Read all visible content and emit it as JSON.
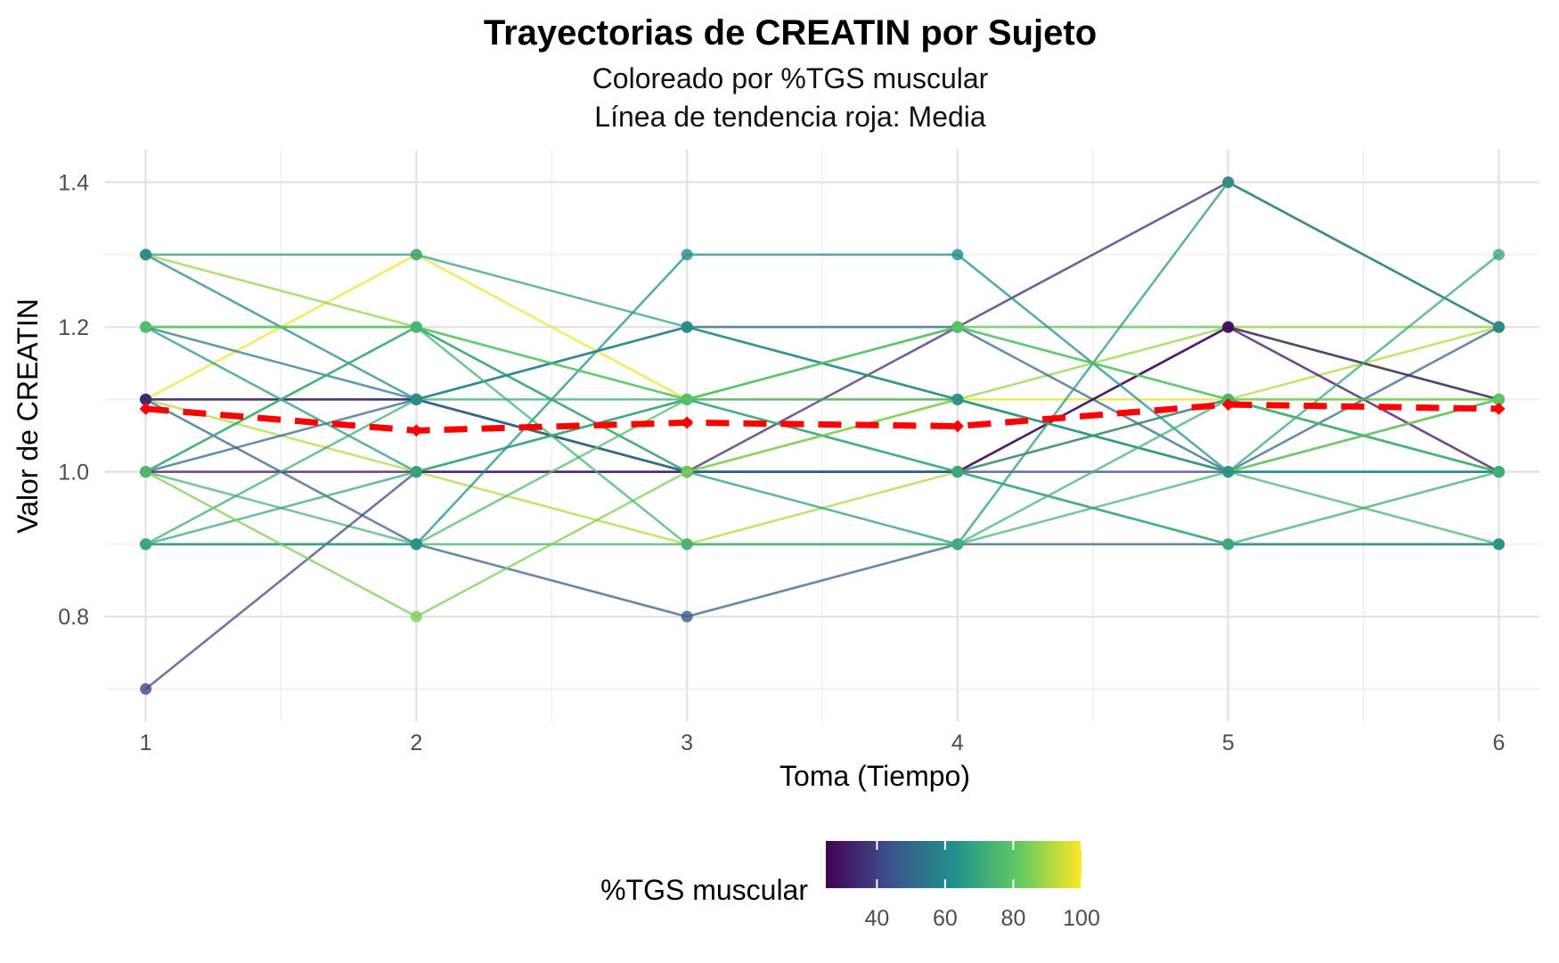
{
  "chart_data": {
    "type": "line",
    "title": "Trayectorias de CREATIN por Sujeto",
    "subtitle_lines": [
      "Coloreado por %TGS muscular",
      "Línea de tendencia roja: Media"
    ],
    "xlabel": "Toma (Tiempo)",
    "ylabel": "Valor de CREATIN",
    "x_ticks": [
      "1",
      "2",
      "3",
      "4",
      "5",
      "6"
    ],
    "xlim": [
      0.85,
      6.15
    ],
    "ylim": [
      0.655,
      1.445
    ],
    "y_ticks": [
      0.8,
      1.0,
      1.2,
      1.4
    ],
    "y_tick_labels": [
      "0.8",
      "1.0",
      "1.2",
      "1.4"
    ],
    "grid": true,
    "colorscale": "viridis",
    "color_range": [
      25,
      100
    ],
    "legend": {
      "title": "%TGS muscular",
      "position": "bottom",
      "ticks": [
        40,
        60,
        80,
        100
      ],
      "tick_labels": [
        "40",
        "60",
        "80",
        "100"
      ],
      "stops": [
        "#440154",
        "#3b528b",
        "#21918c",
        "#5ec962",
        "#fde725"
      ]
    },
    "subjects": [
      {
        "tgs": 98,
        "values": [
          1.1,
          1.3,
          1.1,
          1.1,
          1.1,
          1.1
        ]
      },
      {
        "tgs": 88,
        "values": [
          1.3,
          1.2,
          1.0,
          1.1,
          1.2,
          1.2
        ]
      },
      {
        "tgs": 82,
        "values": [
          1.2,
          1.2,
          1.1,
          1.2,
          1.2,
          1.1
        ]
      },
      {
        "tgs": 91,
        "values": [
          1.1,
          1.0,
          0.9,
          1.0,
          1.1,
          1.2
        ]
      },
      {
        "tgs": 75,
        "values": [
          1.0,
          0.9,
          0.9,
          0.9,
          1.0,
          0.9
        ]
      },
      {
        "tgs": 50,
        "values": [
          1.0,
          1.1,
          1.2,
          1.2,
          1.0,
          1.2
        ]
      },
      {
        "tgs": 48,
        "values": [
          1.1,
          0.9,
          0.8,
          0.9,
          0.9,
          0.9
        ]
      },
      {
        "tgs": 42,
        "values": [
          0.7,
          1.0,
          1.0,
          1.0,
          1.0,
          1.0
        ]
      },
      {
        "tgs": 30,
        "values": [
          1.1,
          1.1,
          1.0,
          1.0,
          1.2,
          1.1
        ]
      },
      {
        "tgs": 28,
        "values": [
          1.0,
          1.0,
          1.0,
          1.0,
          1.2,
          1.0
        ]
      },
      {
        "tgs": 35,
        "values": [
          1.1,
          1.1,
          1.0,
          1.2,
          1.4,
          1.2
        ]
      },
      {
        "tgs": 68,
        "values": [
          1.3,
          1.3,
          1.2,
          1.1,
          1.0,
          1.0
        ]
      },
      {
        "tgs": 56,
        "values": [
          1.2,
          1.1,
          1.0,
          1.0,
          1.1,
          1.0
        ]
      },
      {
        "tgs": 65,
        "values": [
          1.2,
          1.0,
          1.1,
          1.0,
          0.9,
          0.9
        ]
      },
      {
        "tgs": 66,
        "values": [
          1.0,
          1.2,
          1.0,
          0.9,
          1.4,
          1.2
        ]
      },
      {
        "tgs": 78,
        "values": [
          0.9,
          0.9,
          1.1,
          1.2,
          1.1,
          1.0
        ]
      },
      {
        "tgs": 70,
        "values": [
          0.9,
          1.0,
          1.1,
          1.1,
          1.0,
          1.3
        ]
      },
      {
        "tgs": 62,
        "values": [
          0.9,
          0.9,
          1.3,
          1.3,
          1.0,
          1.1
        ]
      },
      {
        "tgs": 72,
        "values": [
          0.9,
          1.1,
          1.1,
          1.0,
          0.9,
          1.0
        ]
      },
      {
        "tgs": 85,
        "values": [
          1.0,
          0.8,
          1.0,
          1.1,
          1.0,
          1.1
        ]
      },
      {
        "tgs": 60,
        "values": [
          1.3,
          1.1,
          1.2,
          1.1,
          1.0,
          1.0
        ]
      },
      {
        "tgs": 80,
        "values": [
          1.2,
          1.2,
          1.1,
          1.2,
          1.1,
          1.1
        ]
      },
      {
        "tgs": 74,
        "values": [
          1.0,
          1.2,
          0.9,
          0.9,
          1.1,
          1.0
        ]
      }
    ],
    "mean_line": {
      "color": "#ff0000",
      "x": [
        1,
        2,
        3,
        4,
        5,
        6
      ],
      "values": [
        1.087,
        1.057,
        1.068,
        1.063,
        1.093,
        1.087
      ]
    }
  }
}
